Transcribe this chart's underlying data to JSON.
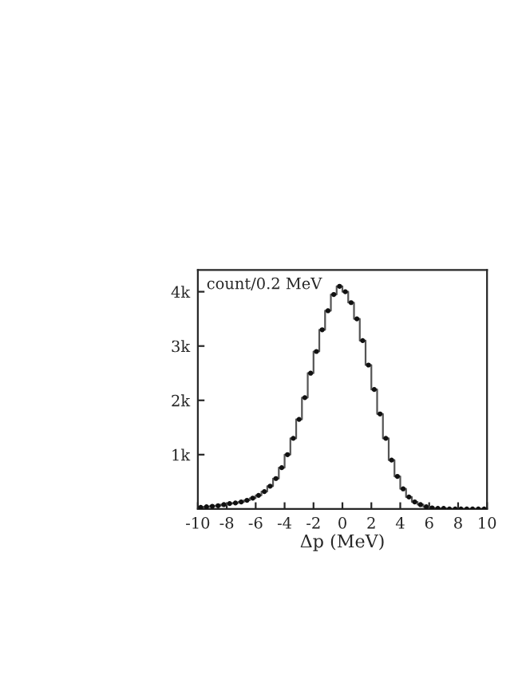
{
  "chart_data": {
    "type": "step",
    "xlabel": "Δp (MeV)",
    "annotations": [
      "count/0.2 MeV"
    ],
    "x": [
      -9.8,
      -9.4,
      -9.0,
      -8.6,
      -8.2,
      -7.8,
      -7.4,
      -7.0,
      -6.6,
      -6.2,
      -5.8,
      -5.4,
      -5.0,
      -4.6,
      -4.2,
      -3.8,
      -3.4,
      -3.0,
      -2.6,
      -2.2,
      -1.8,
      -1.4,
      -1.0,
      -0.6,
      -0.2,
      0.2,
      0.6,
      1.0,
      1.4,
      1.8,
      2.2,
      2.6,
      3.0,
      3.4,
      3.8,
      4.2,
      4.6,
      5.0,
      5.4,
      5.8,
      6.2,
      6.6,
      7.0,
      7.4,
      7.8,
      8.2,
      8.6,
      9.0,
      9.4,
      9.8
    ],
    "series": [
      {
        "color": "#555555",
        "values": [
          30,
          40,
          50,
          60,
          80,
          100,
          110,
          130,
          160,
          200,
          250,
          320,
          420,
          560,
          760,
          1000,
          1300,
          1650,
          2050,
          2500,
          2900,
          3300,
          3650,
          3950,
          4100,
          4000,
          3800,
          3500,
          3100,
          2650,
          2200,
          1750,
          1300,
          900,
          600,
          370,
          220,
          130,
          80,
          40,
          20,
          10,
          10,
          0,
          0,
          0,
          0,
          0,
          0,
          0
        ]
      },
      {
        "type": "scatter",
        "color": "#111111",
        "marker": "circle",
        "values": [
          30,
          40,
          50,
          60,
          80,
          100,
          110,
          130,
          160,
          200,
          250,
          320,
          420,
          560,
          760,
          1000,
          1300,
          1650,
          2050,
          2500,
          2900,
          3300,
          3650,
          3950,
          4100,
          4000,
          3800,
          3500,
          3100,
          2650,
          2200,
          1750,
          1300,
          900,
          600,
          370,
          220,
          130,
          80,
          40,
          20,
          10,
          10,
          0,
          0,
          0,
          0,
          0,
          0,
          0
        ]
      }
    ],
    "xlim": [
      -10,
      10
    ],
    "xticks": [
      -10,
      -8,
      -6,
      -4,
      -2,
      0,
      2,
      4,
      6,
      8,
      10
    ],
    "ylim": [
      0,
      4400
    ],
    "yticks": [
      {
        "value": 1000,
        "label": "1k"
      },
      {
        "value": 2000,
        "label": "2k"
      },
      {
        "value": 3000,
        "label": "3k"
      },
      {
        "value": 4000,
        "label": "4k"
      }
    ],
    "grid": false,
    "legend": false
  }
}
